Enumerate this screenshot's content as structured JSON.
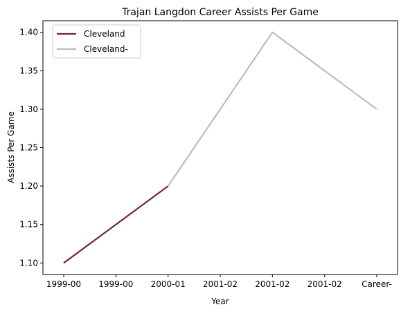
{
  "chart_data": {
    "type": "line",
    "title": "Trajan Langdon Career Assists Per Game",
    "xlabel": "Year",
    "ylabel": "Assists Per Game",
    "x_ticks": [
      "1999-00",
      "1999-00",
      "2000-01",
      "2001-02",
      "2001-02",
      "2001-02",
      "Career-"
    ],
    "ylim": [
      1.085,
      1.415
    ],
    "y_ticks": [
      "1.10",
      "1.15",
      "1.20",
      "1.25",
      "1.30",
      "1.35",
      "1.40"
    ],
    "y_tick_values": [
      1.1,
      1.15,
      1.2,
      1.25,
      1.3,
      1.35,
      1.4
    ],
    "grid": false,
    "legend_position": "upper-left",
    "series": [
      {
        "name": "Cleveland",
        "color": "#6b2541",
        "points": [
          {
            "x": "1999-00",
            "y": 1.1
          },
          {
            "x": "1999-00",
            "y": 1.15
          },
          {
            "x": "2000-01",
            "y": 1.2
          }
        ]
      },
      {
        "name": "Cleveland-",
        "color": "#bdbdbd",
        "points": [
          {
            "x": "2000-01",
            "y": 1.2
          },
          {
            "x": "2001-02",
            "y": 1.3
          },
          {
            "x": "2001-02",
            "y": 1.4
          },
          {
            "x": "2001-02",
            "y": 1.35
          },
          {
            "x": "Career-",
            "y": 1.3
          }
        ]
      }
    ]
  }
}
